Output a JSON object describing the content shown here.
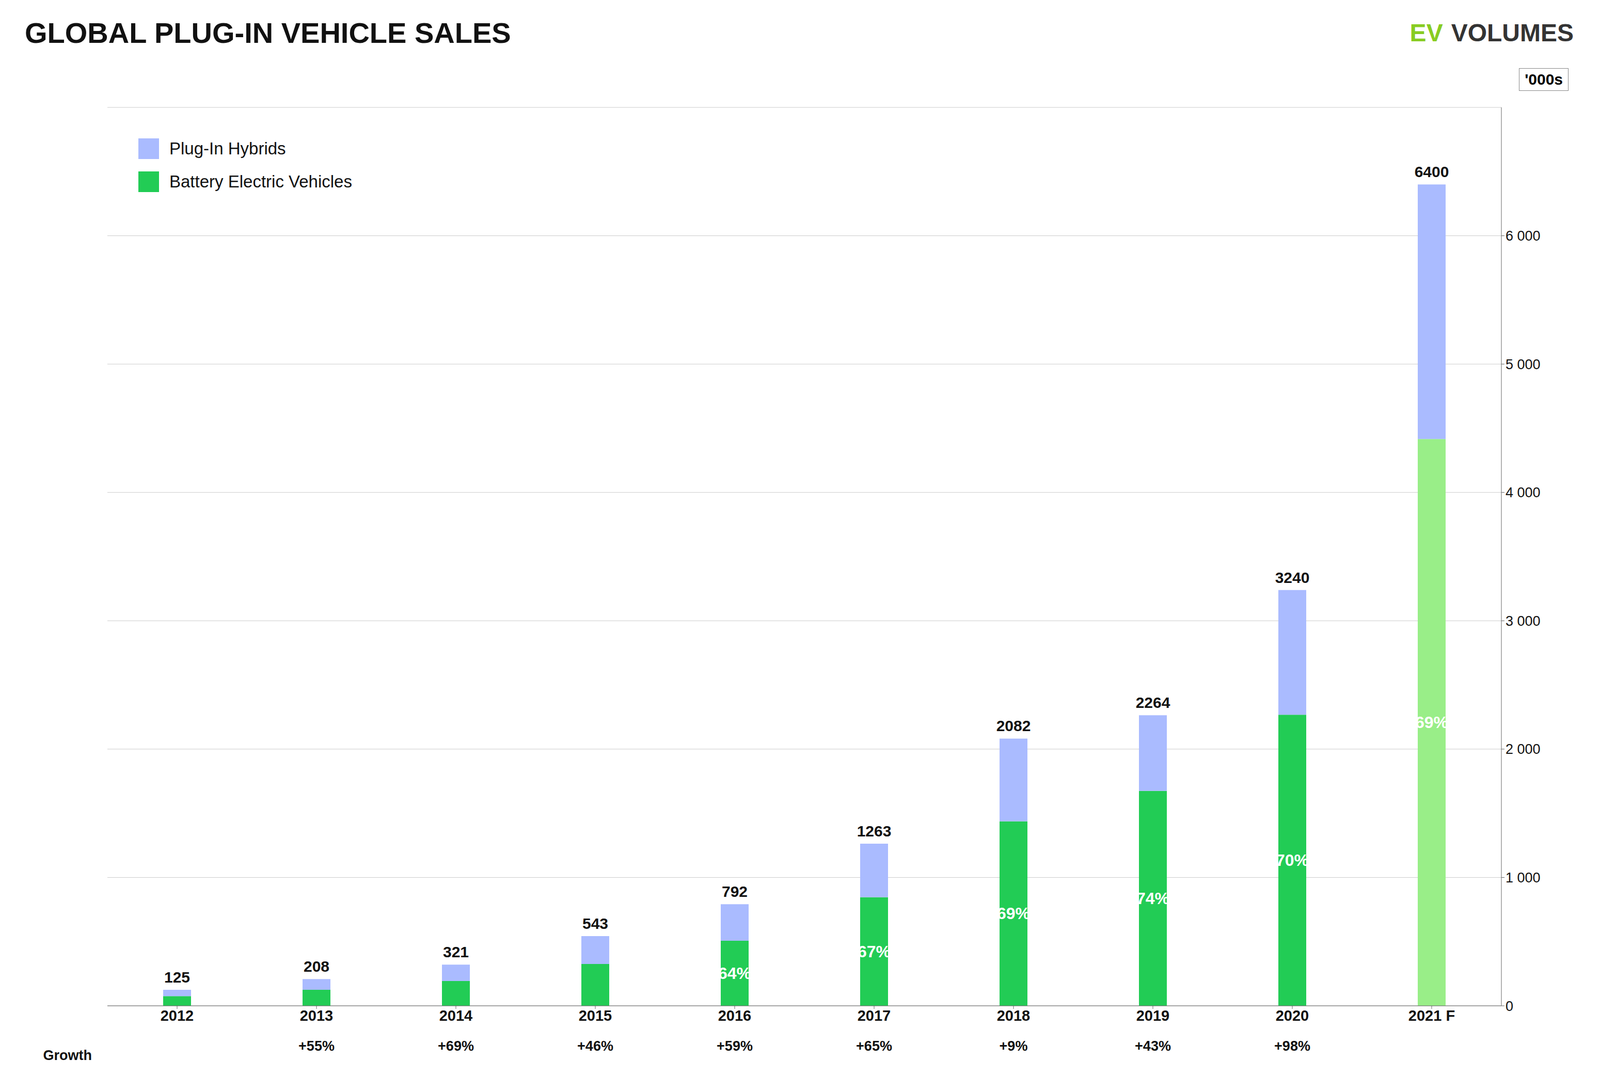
{
  "chart_data": {
    "type": "bar",
    "title": "GLOBAL PLUG-IN VEHICLE SALES",
    "stacked": true,
    "grid": true,
    "legend": "upper left",
    "categories": [
      "2012",
      "2013",
      "2014",
      "2015",
      "2016",
      "2017",
      "2018",
      "2019",
      "2020",
      "2021 F"
    ],
    "series": [
      {
        "name": "Battery Electric Vehicles",
        "colors": [
          "#22cc55",
          "#22cc55",
          "#22cc55",
          "#22cc55",
          "#22cc55",
          "#22cc55",
          "#22cc55",
          "#22cc55",
          "#22cc55",
          "#99ee88"
        ],
        "values": [
          75,
          125,
          193,
          326,
          507,
          846,
          1437,
          1675,
          2268,
          4416
        ],
        "share_labels": [
          null,
          null,
          null,
          null,
          "64%",
          "67%",
          "69%",
          "74%",
          "70%",
          "69%"
        ]
      },
      {
        "name": "Plug-In Hybrids",
        "color": "#aabbff",
        "values": [
          50,
          83,
          128,
          217,
          285,
          417,
          645,
          589,
          972,
          1984
        ]
      }
    ],
    "totals": [
      125,
      208,
      321,
      543,
      792,
      1263,
      2082,
      2264,
      3240,
      6400
    ],
    "growth_title": "Growth",
    "growth_labels": [
      null,
      "+55%",
      "+69%",
      "+46%",
      "+59%",
      "+65%",
      "+9%",
      "+43%",
      "+98%",
      null
    ],
    "ylim": [
      0,
      7000
    ],
    "yticks": [
      0,
      {
        "value": 1000,
        "label": "1 000"
      },
      {
        "value": 2000,
        "label": "2 000"
      },
      {
        "value": 3000,
        "label": "3 000"
      },
      {
        "value": 4000,
        "label": "4 000"
      },
      {
        "value": 5000,
        "label": "5 000"
      },
      {
        "value": 6000,
        "label": "6 000"
      }
    ],
    "annotations": [
      {
        "text": "EV",
        "color": "#88cc22"
      },
      {
        "text": "VOLUMES",
        "color": "#333333"
      },
      {
        "text": "'000s"
      }
    ]
  }
}
